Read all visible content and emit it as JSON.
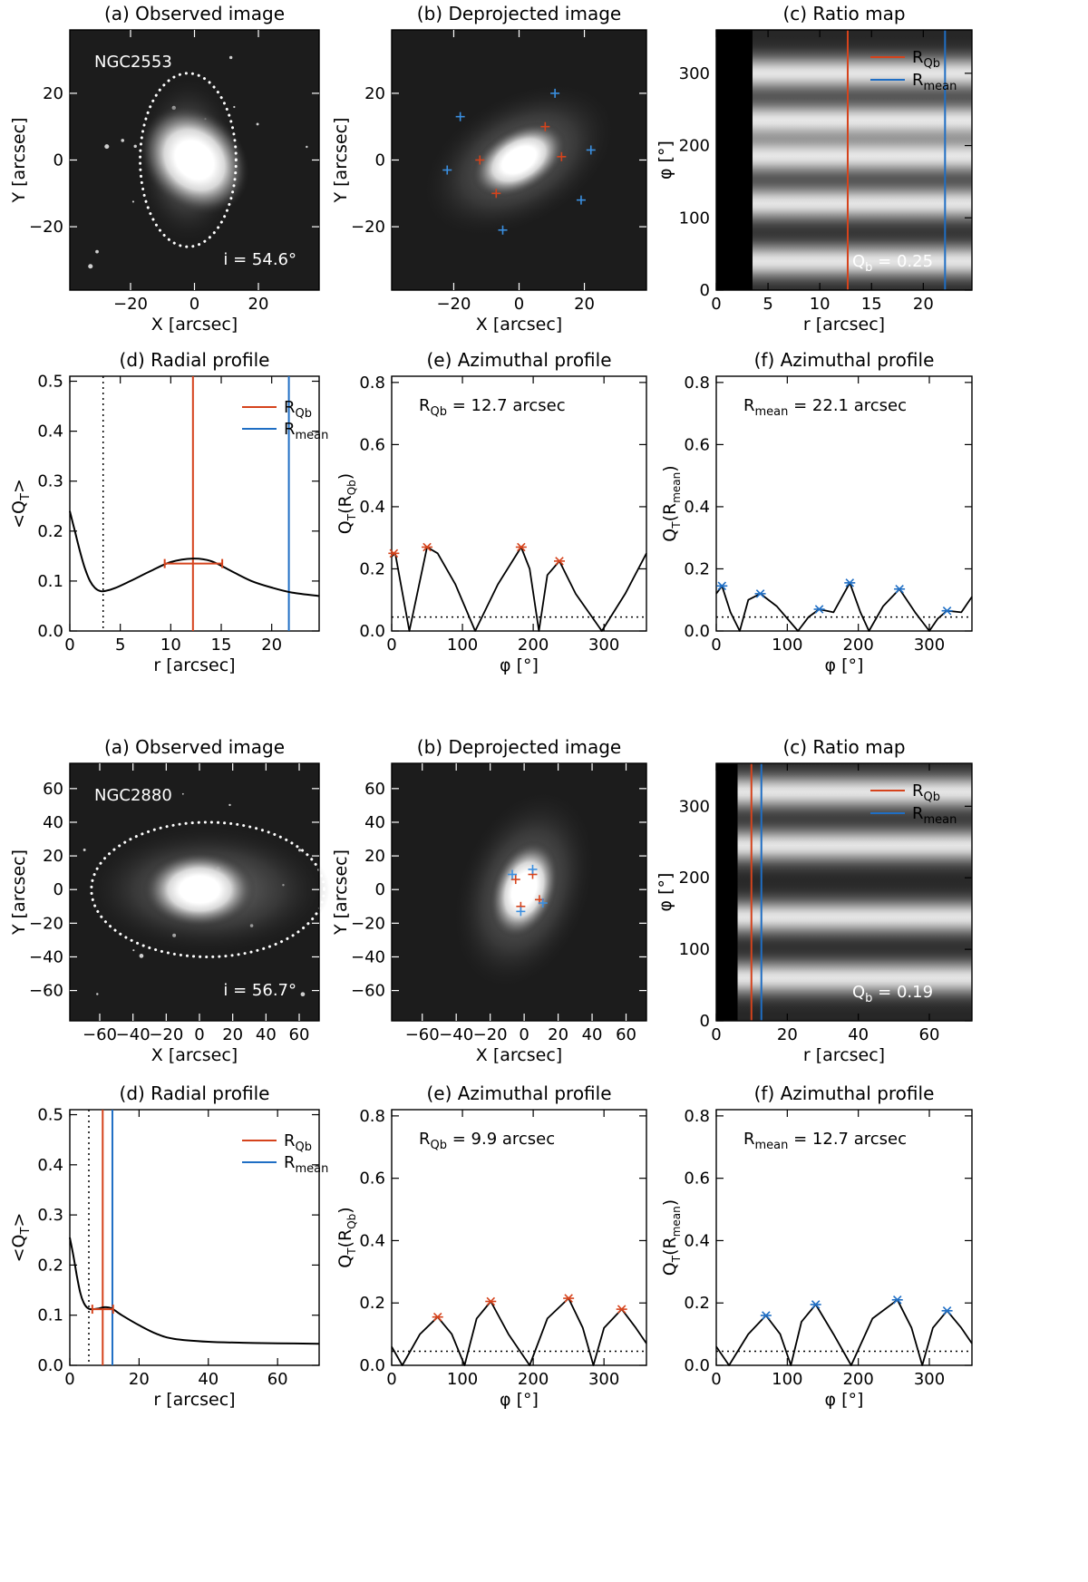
{
  "colors": {
    "rqb": "#d5431c",
    "rmean": "#1f6ec4",
    "cross_blue": "#3a8fe0"
  },
  "chart_data": [
    {
      "galaxy": "NGC2553",
      "inclination_label": "i =  54.6°",
      "qb_label": "Qb =  0.25",
      "rqb_value": 12.7,
      "rmean_value": 22.1,
      "rqb_label": "RQb = 12.7 arcsec",
      "rmean_label": "Rmean = 22.1 arcsec",
      "panels": {
        "a": {
          "type": "image",
          "title": "(a) Observed image",
          "xlabel": "X [arcsec]",
          "ylabel": "Y [arcsec]",
          "xlim": [
            -39,
            39
          ],
          "ylim": [
            -39,
            39
          ],
          "xticks": [
            -20,
            0,
            20
          ],
          "yticks": [
            -20,
            0,
            20
          ],
          "xtick_labels": [
            "−20",
            "0",
            "20"
          ],
          "ytick_labels": [
            "−20",
            "0",
            "20"
          ],
          "ellipse": {
            "cx": -2,
            "cy": 0,
            "rx": 15,
            "ry": 26
          },
          "core": {
            "rx": 8,
            "ry": 9.5,
            "angle_deg": -45
          }
        },
        "b": {
          "type": "image",
          "title": "(b) Deprojected image",
          "xlabel": "X [arcsec]",
          "ylabel": "Y [arcsec]",
          "xlim": [
            -39,
            39
          ],
          "ylim": [
            -39,
            39
          ],
          "xticks": [
            -20,
            0,
            20
          ],
          "yticks": [
            -20,
            0,
            20
          ],
          "xtick_labels": [
            "−20",
            "0",
            "20"
          ],
          "ytick_labels": [
            "−20",
            "0",
            "20"
          ],
          "core": {
            "rx": 10,
            "ry": 6,
            "angle_deg": -30
          },
          "red_markers": [
            [
              -12,
              0
            ],
            [
              8,
              10
            ],
            [
              13,
              1
            ],
            [
              -7,
              -10
            ]
          ],
          "blue_markers": [
            [
              -18,
              13
            ],
            [
              11,
              20
            ],
            [
              22,
              3
            ],
            [
              19,
              -12
            ],
            [
              -5,
              -21
            ],
            [
              -22,
              -3
            ]
          ]
        },
        "c": {
          "type": "heatmap",
          "title": "(c) Ratio map",
          "xlabel": "r [arcsec]",
          "ylabel": "φ [°]",
          "xlim": [
            0,
            24.7
          ],
          "ylim": [
            0,
            360
          ],
          "xticks": [
            0,
            5,
            10,
            15,
            20
          ],
          "yticks": [
            0,
            100,
            200,
            300
          ],
          "xtick_labels": [
            "0",
            "5",
            "10",
            "15",
            "20"
          ],
          "ytick_labels": [
            "0",
            "100",
            "200",
            "300"
          ],
          "black_until": 3.5,
          "bright_bands_phi": [
            40,
            120,
            185,
            235,
            300
          ],
          "legend": [
            "RQb",
            "Rmean"
          ]
        },
        "d": {
          "type": "line",
          "title": "(d) Radial profile",
          "xlabel": "r [arcsec]",
          "ylabel": "<QT>",
          "xlim": [
            0,
            24.7
          ],
          "ylim": [
            0,
            0.51
          ],
          "xticks": [
            0,
            5,
            10,
            15,
            20
          ],
          "yticks": [
            0,
            0.1,
            0.2,
            0.3,
            0.4,
            0.5
          ],
          "xtick_labels": [
            "0",
            "5",
            "10",
            "15",
            "20"
          ],
          "ytick_labels": [
            "0.0",
            "0.1",
            "0.2",
            "0.3",
            "0.4",
            "0.5"
          ],
          "x": [
            0,
            0.5,
            1,
            1.5,
            2,
            2.5,
            3,
            3.5,
            4.5,
            6,
            8,
            10,
            12.2,
            14,
            16,
            18,
            20,
            22,
            24.7
          ],
          "y": [
            0.24,
            0.2,
            0.16,
            0.125,
            0.1,
            0.086,
            0.08,
            0.08,
            0.086,
            0.1,
            0.12,
            0.138,
            0.145,
            0.14,
            0.12,
            0.1,
            0.087,
            0.077,
            0.07
          ],
          "dotted_x": 3.3,
          "rqb_line": 12.2,
          "rmean_line": 21.7,
          "errorbar": {
            "x": 12.2,
            "y": 0.135,
            "xerr": [
              9.4,
              15.1
            ]
          },
          "legend": [
            "RQb",
            "Rmean"
          ]
        },
        "e": {
          "type": "line",
          "title": "(e) Azimuthal profile",
          "xlabel": "φ [°]",
          "ylabel": "QT(RQb)",
          "xlim": [
            0,
            360
          ],
          "ylim": [
            0,
            0.82
          ],
          "xticks": [
            0,
            100,
            200,
            300
          ],
          "yticks": [
            0,
            0.2,
            0.4,
            0.6,
            0.8
          ],
          "xtick_labels": [
            "0",
            "100",
            "200",
            "300"
          ],
          "ytick_labels": [
            "0.0",
            "0.2",
            "0.4",
            "0.6",
            "0.8"
          ],
          "x": [
            0,
            5,
            25,
            50,
            65,
            90,
            118,
            150,
            183,
            195,
            208,
            220,
            237,
            260,
            297,
            330,
            360
          ],
          "y": [
            0.24,
            0.25,
            0.0,
            0.27,
            0.25,
            0.15,
            0.0,
            0.15,
            0.27,
            0.2,
            0.0,
            0.18,
            0.225,
            0.12,
            0.0,
            0.12,
            0.25
          ],
          "dotted_y": 0.045,
          "markers": {
            "x": [
              3,
              50,
              183,
              237
            ],
            "y": [
              0.25,
              0.27,
              0.27,
              0.225
            ]
          },
          "marker_color": "rqb"
        },
        "f": {
          "type": "line",
          "title": "(f) Azimuthal profile",
          "xlabel": "φ [°]",
          "ylabel": "QT(Rmean)",
          "xlim": [
            0,
            360
          ],
          "ylim": [
            0,
            0.82
          ],
          "xticks": [
            0,
            100,
            200,
            300
          ],
          "yticks": [
            0,
            0.2,
            0.4,
            0.6,
            0.8
          ],
          "xtick_labels": [
            "0",
            "100",
            "200",
            "300"
          ],
          "ytick_labels": [
            "0.0",
            "0.2",
            "0.4",
            "0.6",
            "0.8"
          ],
          "x": [
            0,
            8,
            20,
            33,
            45,
            62,
            85,
            115,
            130,
            145,
            165,
            188,
            203,
            215,
            235,
            258,
            280,
            300,
            312,
            325,
            345,
            360
          ],
          "y": [
            0.12,
            0.145,
            0.06,
            0.0,
            0.1,
            0.12,
            0.08,
            0.0,
            0.045,
            0.07,
            0.06,
            0.155,
            0.06,
            0.0,
            0.08,
            0.135,
            0.06,
            0.0,
            0.04,
            0.065,
            0.06,
            0.11
          ],
          "dotted_y": 0.045,
          "markers": {
            "x": [
              8,
              62,
              145,
              188,
              258,
              325
            ],
            "y": [
              0.145,
              0.12,
              0.07,
              0.155,
              0.135,
              0.065
            ]
          },
          "marker_color": "rmean"
        }
      }
    },
    {
      "galaxy": "NGC2880",
      "inclination_label": "i =  56.7°",
      "qb_label": "Qb =  0.19",
      "rqb_value": 9.9,
      "rmean_value": 12.7,
      "rqb_label": "RQb =  9.9 arcsec",
      "rmean_label": "Rmean = 12.7 arcsec",
      "panels": {
        "a": {
          "type": "image",
          "title": "(a) Observed image",
          "xlabel": "X [arcsec]",
          "ylabel": "Y [arcsec]",
          "xlim": [
            -78,
            72
          ],
          "ylim": [
            -78,
            75
          ],
          "xticks": [
            -60,
            -40,
            -20,
            0,
            20,
            40,
            60
          ],
          "yticks": [
            -60,
            -40,
            -20,
            0,
            20,
            40,
            60
          ],
          "xtick_labels": [
            "−60",
            "−40",
            "−20",
            "0",
            "20",
            "40",
            "60"
          ],
          "ytick_labels": [
            "−60",
            "−40",
            "−20",
            "0",
            "20",
            "40",
            "60"
          ],
          "ellipse": {
            "cx": 5,
            "cy": 0,
            "rx": 70,
            "ry": 40
          },
          "core": {
            "rx": 18,
            "ry": 12,
            "angle_deg": 0
          }
        },
        "b": {
          "type": "image",
          "title": "(b) Deprojected image",
          "xlabel": "X [arcsec]",
          "ylabel": "Y [arcsec]",
          "xlim": [
            -78,
            72
          ],
          "ylim": [
            -78,
            75
          ],
          "xticks": [
            -60,
            -40,
            -20,
            0,
            20,
            40,
            60
          ],
          "yticks": [
            -60,
            -40,
            -20,
            0,
            20,
            40,
            60
          ],
          "xtick_labels": [
            "−60",
            "−40",
            "−20",
            "0",
            "20",
            "40",
            "60"
          ],
          "ytick_labels": [
            "−60",
            "−40",
            "−20",
            "0",
            "20",
            "40",
            "60"
          ],
          "core": {
            "rx": 12,
            "ry": 19,
            "angle_deg": 20
          },
          "red_markers": [
            [
              -5,
              6
            ],
            [
              5,
              9
            ],
            [
              9,
              -6
            ],
            [
              -2,
              -10
            ]
          ],
          "blue_markers": [
            [
              -7,
              9
            ],
            [
              5,
              12
            ],
            [
              11,
              -8
            ],
            [
              -2,
              -13
            ]
          ]
        },
        "c": {
          "type": "heatmap",
          "title": "(c) Ratio map",
          "xlabel": "r [arcsec]",
          "ylabel": "φ [°]",
          "xlim": [
            0,
            72
          ],
          "ylim": [
            0,
            360
          ],
          "xticks": [
            0,
            20,
            40,
            60
          ],
          "yticks": [
            0,
            100,
            200,
            300
          ],
          "xtick_labels": [
            "0",
            "20",
            "40",
            "60"
          ],
          "ytick_labels": [
            "0",
            "100",
            "200",
            "300"
          ],
          "black_until": 6,
          "bright_bands_phi": [
            60,
            145,
            245,
            320
          ],
          "legend": [
            "RQb",
            "Rmean"
          ]
        },
        "d": {
          "type": "line",
          "title": "(d) Radial profile",
          "xlabel": "r [arcsec]",
          "ylabel": "<QT>",
          "xlim": [
            0,
            72
          ],
          "ylim": [
            0,
            0.51
          ],
          "xticks": [
            0,
            20,
            40,
            60
          ],
          "yticks": [
            0,
            0.1,
            0.2,
            0.3,
            0.4,
            0.5
          ],
          "xtick_labels": [
            "0",
            "20",
            "40",
            "60"
          ],
          "ytick_labels": [
            "0.0",
            "0.1",
            "0.2",
            "0.3",
            "0.4",
            "0.5"
          ],
          "x": [
            0,
            1,
            2,
            3,
            4,
            5,
            6,
            8,
            10,
            12,
            15,
            20,
            25,
            30,
            40,
            50,
            60,
            72
          ],
          "y": [
            0.255,
            0.22,
            0.18,
            0.145,
            0.125,
            0.115,
            0.112,
            0.113,
            0.116,
            0.114,
            0.1,
            0.08,
            0.063,
            0.053,
            0.047,
            0.045,
            0.044,
            0.043
          ],
          "dotted_x": 5.5,
          "rqb_line": 9.5,
          "rmean_line": 12.3,
          "errorbar": {
            "x": 9.5,
            "y": 0.112,
            "xerr": [
              6.5,
              12.5
            ]
          },
          "legend": [
            "RQb",
            "Rmean"
          ]
        },
        "e": {
          "type": "line",
          "title": "(e) Azimuthal profile",
          "xlabel": "φ [°]",
          "ylabel": "QT(RQb)",
          "xlim": [
            0,
            360
          ],
          "ylim": [
            0,
            0.82
          ],
          "xticks": [
            0,
            100,
            200,
            300
          ],
          "yticks": [
            0,
            0.2,
            0.4,
            0.6,
            0.8
          ],
          "xtick_labels": [
            "0",
            "100",
            "200",
            "300"
          ],
          "ytick_labels": [
            "0.0",
            "0.2",
            "0.4",
            "0.6",
            "0.8"
          ],
          "x": [
            0,
            15,
            40,
            65,
            85,
            103,
            120,
            140,
            165,
            195,
            220,
            250,
            270,
            285,
            300,
            325,
            345,
            360
          ],
          "y": [
            0.06,
            0.0,
            0.1,
            0.155,
            0.1,
            0.0,
            0.15,
            0.205,
            0.1,
            0.0,
            0.15,
            0.215,
            0.12,
            0.0,
            0.12,
            0.18,
            0.12,
            0.07
          ],
          "dotted_y": 0.045,
          "markers": {
            "x": [
              65,
              140,
              250,
              325
            ],
            "y": [
              0.155,
              0.205,
              0.215,
              0.18
            ]
          },
          "marker_color": "rqb"
        },
        "f": {
          "type": "line",
          "title": "(f) Azimuthal profile",
          "xlabel": "φ [°]",
          "ylabel": "QT(Rmean)",
          "xlim": [
            0,
            360
          ],
          "ylim": [
            0,
            0.82
          ],
          "xticks": [
            0,
            100,
            200,
            300
          ],
          "yticks": [
            0,
            0.2,
            0.4,
            0.6,
            0.8
          ],
          "xtick_labels": [
            "0",
            "100",
            "200",
            "300"
          ],
          "ytick_labels": [
            "0.0",
            "0.2",
            "0.4",
            "0.6",
            "0.8"
          ],
          "x": [
            0,
            18,
            45,
            70,
            90,
            105,
            120,
            140,
            165,
            190,
            220,
            255,
            275,
            290,
            305,
            325,
            345,
            360
          ],
          "y": [
            0.06,
            0.0,
            0.1,
            0.16,
            0.1,
            0.0,
            0.14,
            0.195,
            0.1,
            0.0,
            0.15,
            0.21,
            0.12,
            0.0,
            0.12,
            0.175,
            0.12,
            0.07
          ],
          "dotted_y": 0.045,
          "markers": {
            "x": [
              70,
              140,
              255,
              325
            ],
            "y": [
              0.16,
              0.195,
              0.21,
              0.175
            ]
          },
          "marker_color": "rmean"
        }
      }
    }
  ]
}
